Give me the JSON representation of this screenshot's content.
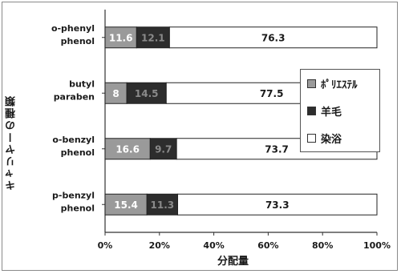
{
  "chart_data": {
    "type": "bar",
    "orientation": "horizontal",
    "stacked": true,
    "categories": [
      [
        "o-phenyl",
        "phenol"
      ],
      [
        "butyl",
        "paraben"
      ],
      [
        "o-benzyl",
        "phenol"
      ],
      [
        "p-benzyl",
        "phenol"
      ]
    ],
    "series": [
      {
        "name": "ﾎﾟﾘｴｽﾃﾙ",
        "values": [
          11.6,
          8,
          16.6,
          15.4
        ],
        "color": "#9a9a9a",
        "label_color": "#ffffff"
      },
      {
        "name": "羊毛",
        "values": [
          12.1,
          14.5,
          9.7,
          11.3
        ],
        "color": "#2d2d2d",
        "label_color": "#8a8a8a"
      },
      {
        "name": "染浴",
        "values": [
          76.3,
          77.5,
          73.7,
          73.3
        ],
        "color": "#ffffff",
        "label_color": "#1a1a1a"
      }
    ],
    "data_labels": [
      [
        "11.6",
        "12.1",
        "76.3"
      ],
      [
        "8",
        "14.5",
        "77.5"
      ],
      [
        "16.6",
        "9.7",
        "73.7"
      ],
      [
        "15.4",
        "11.3",
        "73.3"
      ]
    ],
    "xlabel": "分配量",
    "ylabel": "キャリヤーの種類",
    "xlim": [
      0,
      100
    ],
    "xticks": [
      "0%",
      "20%",
      "40%",
      "60%",
      "80%",
      "100%"
    ],
    "grid": false,
    "legend_position": "right"
  }
}
